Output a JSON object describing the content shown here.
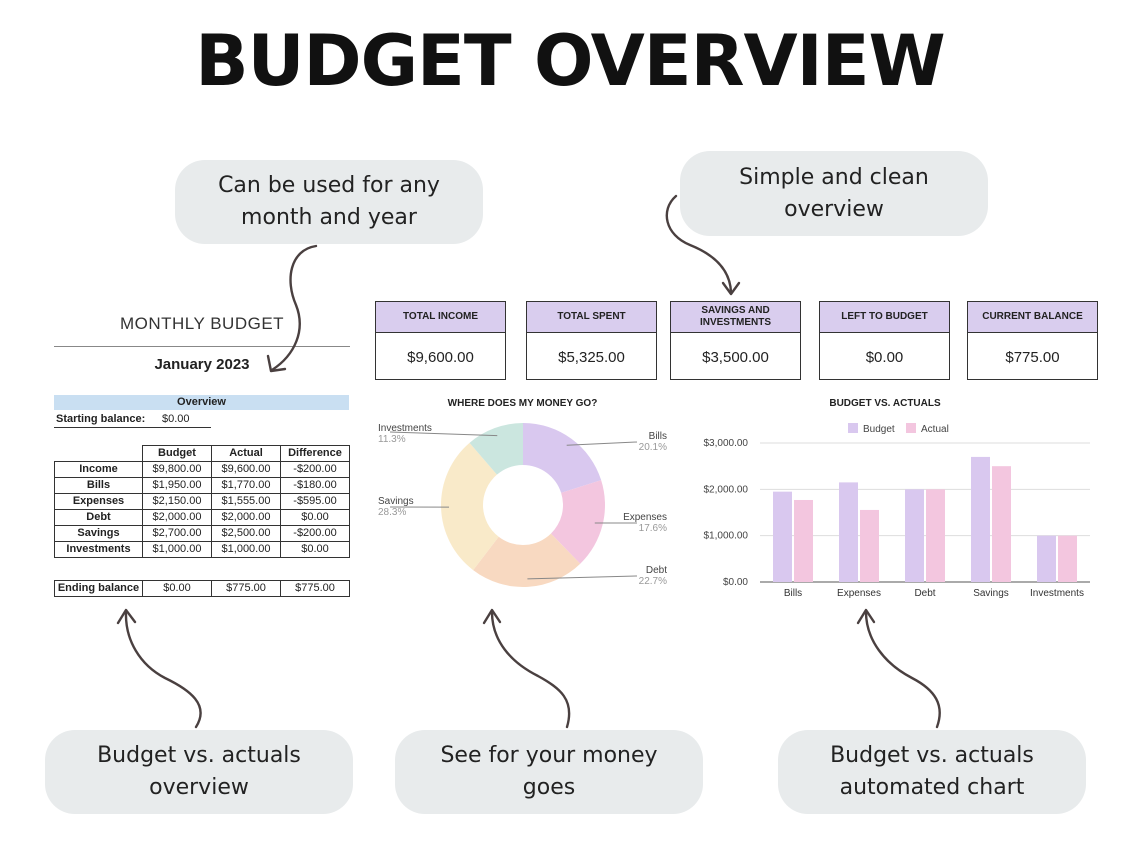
{
  "title": "BUDGET OVERVIEW",
  "callouts": {
    "top_left": "Can be used for any\nmonth and year",
    "top_right": "Simple and clean\noverview",
    "bottom_left": "Budget vs. actuals\noverview",
    "bottom_middle": "See for your money\ngoes",
    "bottom_right": "Budget vs. actuals\nautomated chart"
  },
  "sheet": {
    "title": "MONTHLY BUDGET",
    "month": "January 2023",
    "overview_label": "Overview",
    "starting_balance_label": "Starting balance:",
    "starting_balance_value": "$0.00",
    "columns": [
      "",
      "Budget",
      "Actual",
      "Difference"
    ],
    "rows": [
      [
        "Income",
        "$9,800.00",
        "$9,600.00",
        "-$200.00"
      ],
      [
        "Bills",
        "$1,950.00",
        "$1,770.00",
        "-$180.00"
      ],
      [
        "Expenses",
        "$2,150.00",
        "$1,555.00",
        "-$595.00"
      ],
      [
        "Debt",
        "$2,000.00",
        "$2,000.00",
        "$0.00"
      ],
      [
        "Savings",
        "$2,700.00",
        "$2,500.00",
        "-$200.00"
      ],
      [
        "Investments",
        "$1,000.00",
        "$1,000.00",
        "$0.00"
      ]
    ],
    "ending": [
      "Ending balance",
      "$0.00",
      "$775.00",
      "$775.00"
    ]
  },
  "kpis": [
    {
      "label": "TOTAL INCOME",
      "value": "$9,600.00"
    },
    {
      "label": "TOTAL SPENT",
      "value": "$5,325.00"
    },
    {
      "label": "SAVINGS AND\nINVESTMENTS",
      "value": "$3,500.00"
    },
    {
      "label": "LEFT TO BUDGET",
      "value": "$0.00"
    },
    {
      "label": "CURRENT BALANCE",
      "value": "$775.00"
    }
  ],
  "colors": {
    "bills": "#d9c8ef",
    "expenses": "#f3c6df",
    "debt": "#f8d9c1",
    "savings": "#f9eac9",
    "investments": "#cbe6df",
    "budget_bar": "#d9c8ef",
    "actual_bar": "#f3c6df",
    "kpi_header": "#d9cdee",
    "overview_bar": "#c9dff2"
  },
  "chart_data": [
    {
      "type": "pie",
      "title": "WHERE DOES MY MONEY GO?",
      "donut": true,
      "slices": [
        {
          "label": "Bills",
          "pct_label": "20.1%",
          "value": 20.1
        },
        {
          "label": "Expenses",
          "pct_label": "17.6%",
          "value": 17.6
        },
        {
          "label": "Debt",
          "pct_label": "22.7%",
          "value": 22.7
        },
        {
          "label": "Savings",
          "pct_label": "28.3%",
          "value": 28.3
        },
        {
          "label": "Investments",
          "pct_label": "11.3%",
          "value": 11.3
        }
      ]
    },
    {
      "type": "bar",
      "title": "BUDGET VS. ACTUALS",
      "categories": [
        "Bills",
        "Expenses",
        "Debt",
        "Savings",
        "Investments"
      ],
      "series": [
        {
          "name": "Budget",
          "values": [
            1950,
            2150,
            2000,
            2700,
            1000
          ]
        },
        {
          "name": "Actual",
          "values": [
            1770,
            1555,
            2000,
            2500,
            1000
          ]
        }
      ],
      "ylim": [
        0,
        3000
      ],
      "yticks": [
        "$0.00",
        "$1,000.00",
        "$2,000.00",
        "$3,000.00"
      ],
      "legend": "top",
      "grid": true
    }
  ]
}
